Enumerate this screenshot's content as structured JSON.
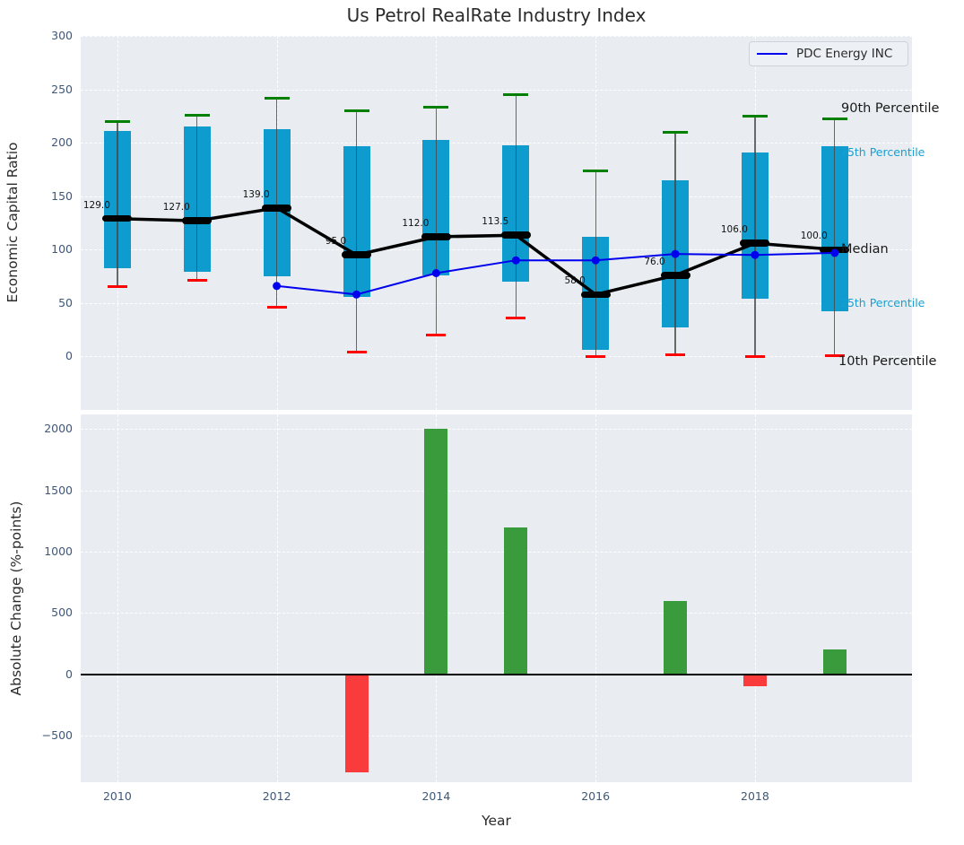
{
  "title": "Us Petrol RealRate Industry Index",
  "legend": {
    "label": "PDC Energy INC"
  },
  "annotations": {
    "p90": "90th Percentile",
    "p75": "75th Percentile",
    "median": "Median",
    "p25": "25th Percentile",
    "p10": "10th Percentile"
  },
  "axes": {
    "top_ylabel": "Economic Capital Ratio",
    "bottom_ylabel": "Absolute Change (%-points)",
    "xlabel": "Year",
    "top_yticks": [
      0,
      50,
      100,
      150,
      200,
      250,
      300
    ],
    "bottom_yticks": [
      -500,
      0,
      500,
      1000,
      1500,
      2000
    ],
    "xticks": [
      2010,
      2012,
      2014,
      2016,
      2018
    ]
  },
  "colors": {
    "box": "#0E9BCE",
    "cap_top": "#008000",
    "cap_bottom": "#FF0000",
    "median": "#000000",
    "company_line": "#0000EE",
    "bar_positive": "#3A9B3C",
    "bar_negative": "#FA3B3C",
    "plot_bg": "#E9EDF1"
  },
  "chart_data": [
    {
      "type": "boxplot-percentiles+line",
      "title": "Us Petrol RealRate Industry Index",
      "ylabel": "Economic Capital Ratio",
      "ylim": [
        -50,
        300
      ],
      "grid": true,
      "legend_position": "upper right",
      "years": [
        2010,
        2011,
        2012,
        2013,
        2014,
        2015,
        2016,
        2017,
        2018,
        2019
      ],
      "p90": [
        220,
        226,
        242,
        230,
        233,
        245,
        174,
        210,
        225,
        222
      ],
      "p75": [
        211,
        215,
        213,
        197,
        203,
        198,
        112,
        165,
        191,
        197
      ],
      "median": [
        129,
        127,
        139,
        95,
        112,
        113.5,
        58,
        76,
        106,
        100
      ],
      "p25": [
        83,
        79,
        75,
        56,
        76,
        70,
        6,
        27,
        54,
        42
      ],
      "p10": [
        65,
        71,
        46,
        4,
        20,
        36,
        0,
        2,
        0,
        1
      ],
      "median_labels": [
        "129.0",
        "127.0",
        "139.0",
        "95.0",
        "112.0",
        "113.5",
        "58.0",
        "76.0",
        "106.0",
        "100.0"
      ],
      "company_series": {
        "name": "PDC Energy INC",
        "years": [
          2012,
          2013,
          2014,
          2015,
          2016,
          2017,
          2018,
          2019
        ],
        "values": [
          66,
          58,
          78,
          90,
          90,
          96,
          95,
          97
        ]
      }
    },
    {
      "type": "bar",
      "ylabel": "Absolute Change (%-points)",
      "xlabel": "Year",
      "ylim": [
        -880,
        2120
      ],
      "grid": true,
      "years": [
        2010,
        2011,
        2012,
        2013,
        2014,
        2015,
        2016,
        2017,
        2018,
        2019
      ],
      "values": [
        null,
        null,
        null,
        -800,
        2000,
        1200,
        0,
        600,
        -100,
        200
      ]
    }
  ]
}
